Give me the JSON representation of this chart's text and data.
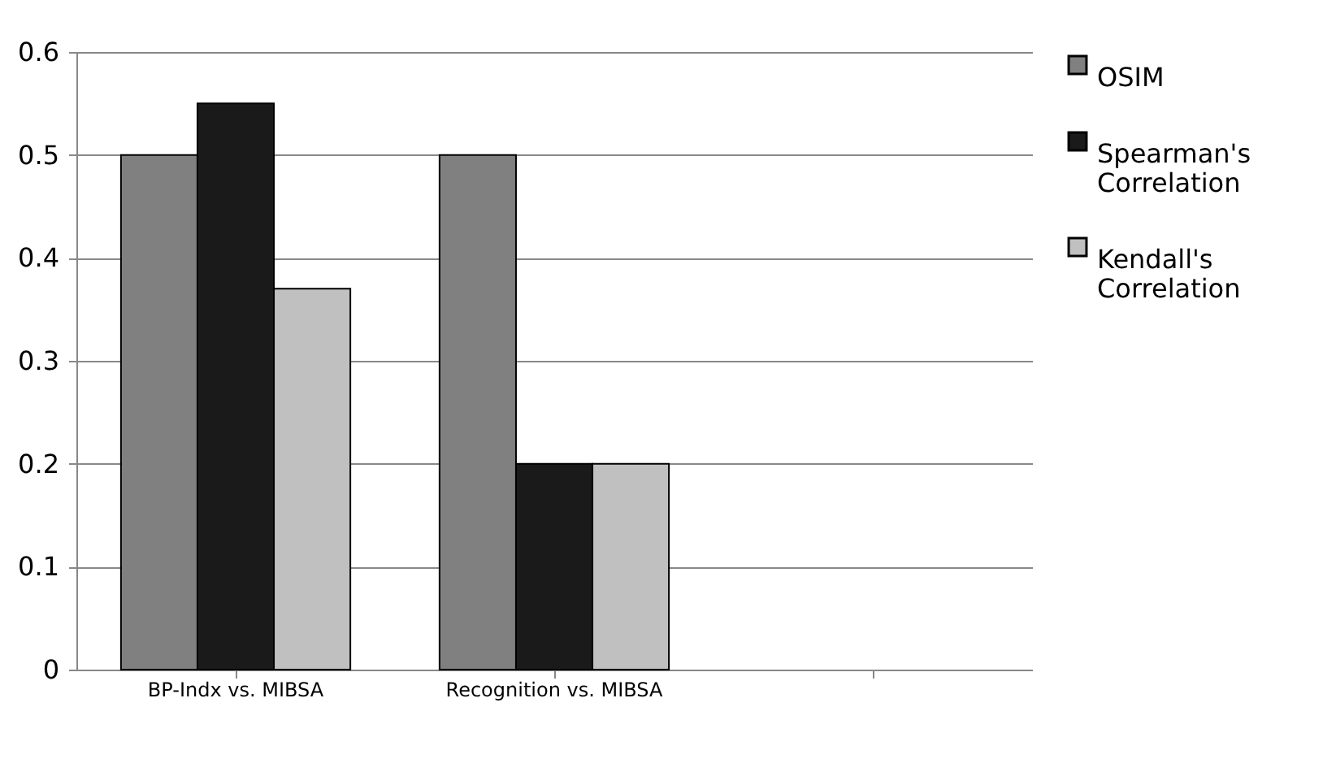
{
  "chart_data": {
    "type": "bar",
    "categories": [
      "BP-Indx vs. MIBSA",
      "Recognition vs. MIBSA",
      null
    ],
    "series": [
      {
        "name": "OSIM",
        "color": "#808080",
        "values": [
          0.5,
          0.5,
          null
        ]
      },
      {
        "name": "Spearman's Correlation",
        "color": "#1a1a1a",
        "values": [
          0.55,
          0.2,
          null
        ]
      },
      {
        "name": "Kendall's Correlation",
        "color": "#c0c0c0",
        "values": [
          0.37,
          0.2,
          null
        ]
      }
    ],
    "ylim": [
      0,
      0.6
    ],
    "yticks": [
      {
        "value": 0,
        "label": "0"
      },
      0.1,
      0.2,
      0.3,
      0.4,
      0.5,
      0.6
    ],
    "grid": "y",
    "legend": "right"
  }
}
